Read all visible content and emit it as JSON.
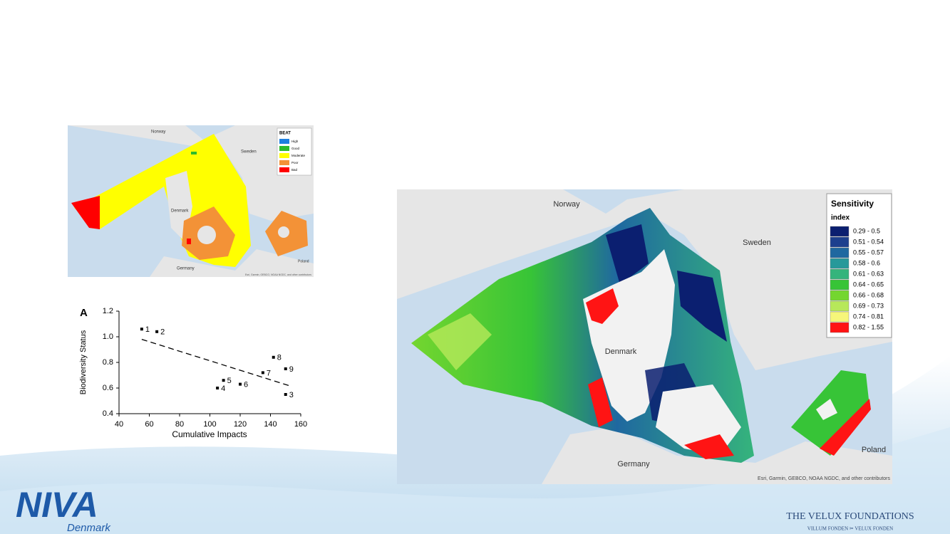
{
  "small_map": {
    "labels": {
      "norway": "Norway",
      "sweden": "Sweden",
      "denmark": "Denmark",
      "germany": "Germany",
      "poland": "Poland"
    },
    "legend": {
      "title": "BEAT",
      "items": [
        {
          "label": "High",
          "color": "#1e7fe0"
        },
        {
          "label": "Good",
          "color": "#2dbb2d"
        },
        {
          "label": "Moderate",
          "color": "#ffff00"
        },
        {
          "label": "Poor",
          "color": "#f39237"
        },
        {
          "label": "Bad",
          "color": "#ff0000"
        }
      ]
    },
    "attribution": "Esri, Garmin, GEBCO, NOAA NGDC, and other contributors"
  },
  "chart_data": {
    "type": "scatter",
    "panel_label": "A",
    "x_label": "Cumulative Impacts",
    "y_label": "Biodiversity Status",
    "x": [
      55,
      65,
      150,
      105,
      109,
      120,
      135,
      142,
      150
    ],
    "y": [
      1.06,
      1.04,
      0.55,
      0.6,
      0.66,
      0.63,
      0.72,
      0.84,
      0.75
    ],
    "point_labels": [
      "1",
      "2",
      "3",
      "4",
      "5",
      "6",
      "7",
      "8",
      "9"
    ],
    "trendline": {
      "x": [
        55,
        152
      ],
      "y": [
        0.98,
        0.62
      ]
    },
    "color": "#000000",
    "xlim": [
      40,
      160
    ],
    "xticks": [
      40,
      60,
      80,
      100,
      120,
      140,
      160
    ],
    "ylim": [
      0.4,
      1.2
    ],
    "yticks": [
      0.4,
      0.6,
      0.8,
      {
        "value": 1,
        "label": "1.0"
      },
      1.2
    ]
  },
  "large_map": {
    "labels": {
      "norway": "Norway",
      "sweden": "Sweden",
      "denmark": "Denmark",
      "germany": "Germany",
      "poland": "Poland"
    },
    "legend": {
      "title": "Sensitivity",
      "subtitle": "index",
      "items": [
        {
          "label": "0.29 - 0.5",
          "color": "#0b1f70"
        },
        {
          "label": "0.51 - 0.54",
          "color": "#1c3f8e"
        },
        {
          "label": "0.55 - 0.57",
          "color": "#1f68a0"
        },
        {
          "label": "0.58 - 0.6",
          "color": "#27999a"
        },
        {
          "label": "0.61 - 0.63",
          "color": "#35b47c"
        },
        {
          "label": "0.64 - 0.65",
          "color": "#37c437"
        },
        {
          "label": "0.66 - 0.68",
          "color": "#74d62f"
        },
        {
          "label": "0.69 - 0.73",
          "color": "#b7e85a"
        },
        {
          "label": "0.74 - 0.81",
          "color": "#f6f67a"
        },
        {
          "label": "0.82 - 1.55",
          "color": "#ff1414"
        }
      ]
    },
    "attribution": "Esri, Garmin, GEBCO, NOAA NGDC, and other contributors"
  },
  "logos": {
    "niva": "NIVA",
    "niva_sub": "Denmark",
    "velux": "THE VELUX FOUNDATIONS",
    "velux_sub": "VILLUM FONDEN ✂ VELUX FONDEN"
  }
}
